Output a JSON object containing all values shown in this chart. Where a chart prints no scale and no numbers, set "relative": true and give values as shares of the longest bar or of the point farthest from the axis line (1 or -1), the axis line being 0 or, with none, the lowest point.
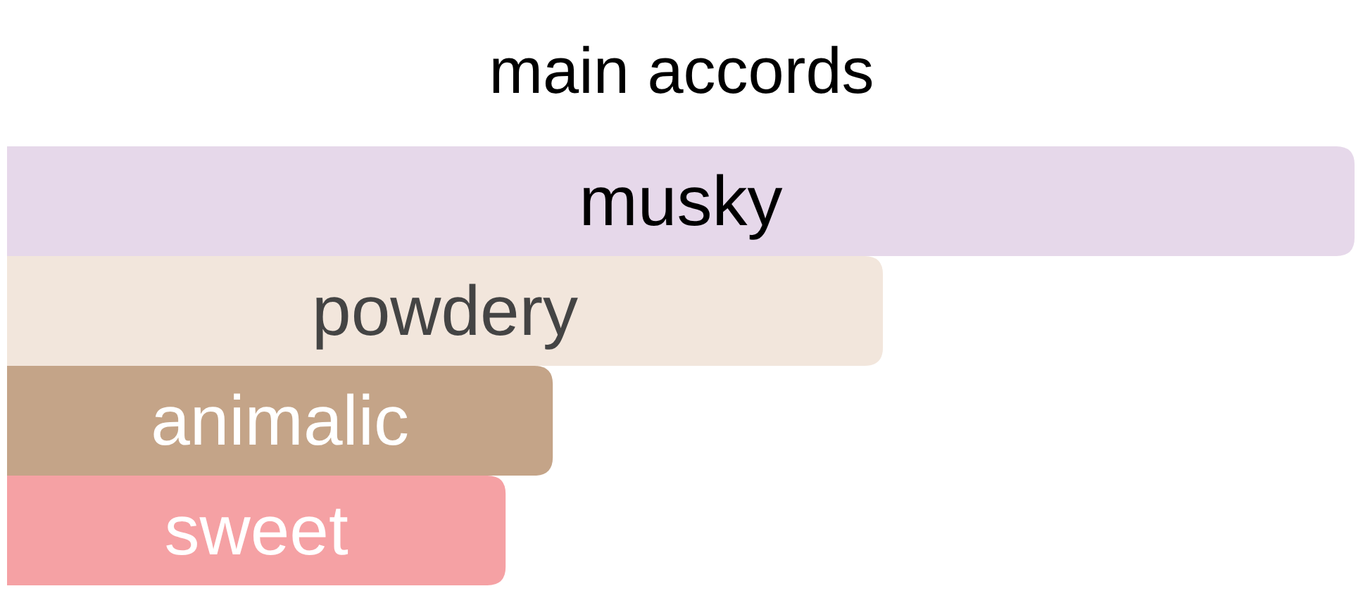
{
  "chart_data": {
    "type": "bar",
    "orientation": "horizontal",
    "relative": true,
    "title": "main accords",
    "categories": [
      "musky",
      "powdery",
      "animalic",
      "sweet"
    ],
    "values": [
      1,
      0.65,
      0.405,
      0.37
    ],
    "colors": [
      "#e6d8ea",
      "#f2e6dc",
      "#c4a488",
      "#f5a1a4"
    ]
  }
}
